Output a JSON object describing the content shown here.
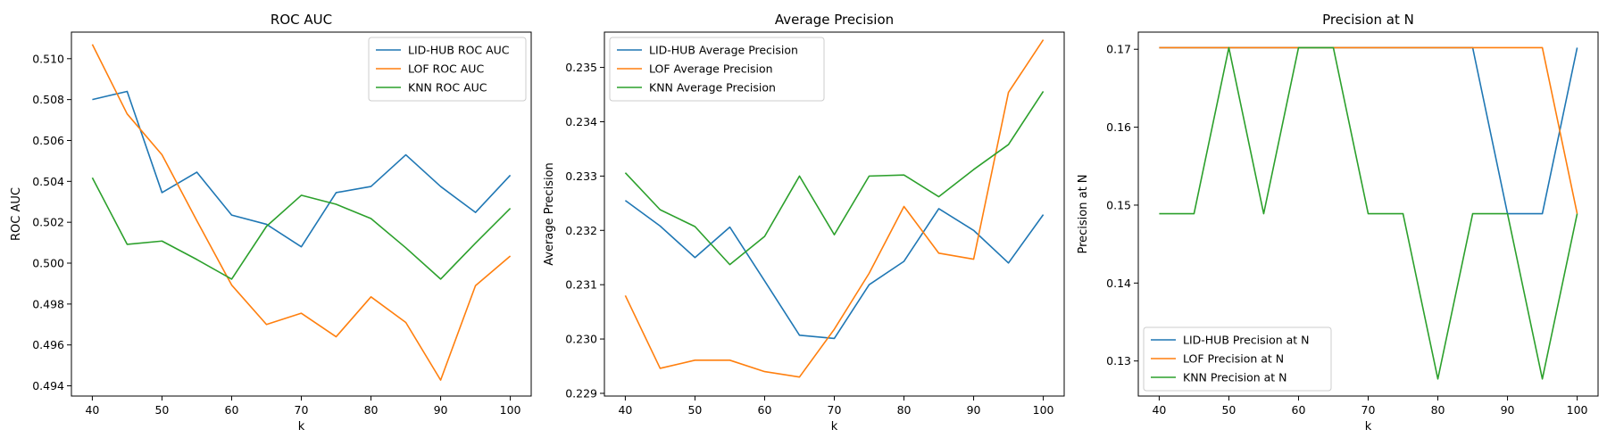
{
  "chart_data": [
    {
      "type": "line",
      "title": "ROC AUC",
      "xlabel": "k",
      "ylabel": "ROC AUC",
      "x": [
        40,
        45,
        50,
        55,
        60,
        65,
        70,
        75,
        80,
        85,
        90,
        95,
        100
      ],
      "xlim": [
        37,
        103
      ],
      "ylim": [
        0.4935,
        0.5113
      ],
      "xticks": [
        40,
        50,
        60,
        70,
        80,
        90,
        100
      ],
      "yticks": [
        0.494,
        0.496,
        0.498,
        0.5,
        0.502,
        0.504,
        0.506,
        0.508,
        0.51
      ],
      "ytick_labels": [
        "0.494",
        "0.496",
        "0.498",
        "0.500",
        "0.502",
        "0.504",
        "0.506",
        "0.508",
        "0.510"
      ],
      "legend_position": "top-right",
      "grid": false,
      "series": [
        {
          "name": "LID-HUB ROC AUC",
          "color": "#1f77b4",
          "values": [
            0.508,
            0.5084,
            0.50345,
            0.50445,
            0.50235,
            0.5019,
            0.5008,
            0.50345,
            0.50375,
            0.5053,
            0.50375,
            0.50248,
            0.5043
          ]
        },
        {
          "name": "LOF ROC AUC",
          "color": "#ff7f0e",
          "values": [
            0.5107,
            0.5073,
            0.5053,
            0.50208,
            0.49893,
            0.497,
            0.49755,
            0.4964,
            0.49835,
            0.4971,
            0.49428,
            0.4989,
            0.50035
          ]
        },
        {
          "name": "KNN ROC AUC",
          "color": "#2ca02c",
          "values": [
            0.50418,
            0.50092,
            0.50108,
            0.50018,
            0.49922,
            0.5018,
            0.50332,
            0.50288,
            0.50218,
            0.50075,
            0.49922,
            0.50098,
            0.50268
          ]
        }
      ]
    },
    {
      "type": "line",
      "title": "Average Precision",
      "xlabel": "k",
      "ylabel": "Average Precision",
      "x": [
        40,
        45,
        50,
        55,
        60,
        65,
        70,
        75,
        80,
        85,
        90,
        95,
        100
      ],
      "xlim": [
        37,
        103
      ],
      "ylim": [
        0.22895,
        0.23565
      ],
      "xticks": [
        40,
        50,
        60,
        70,
        80,
        90,
        100
      ],
      "yticks": [
        0.229,
        0.23,
        0.231,
        0.232,
        0.233,
        0.234,
        0.235
      ],
      "ytick_labels": [
        "0.229",
        "0.230",
        "0.231",
        "0.232",
        "0.233",
        "0.234",
        "0.235"
      ],
      "legend_position": "top-left",
      "grid": false,
      "series": [
        {
          "name": "LID-HUB Average Precision",
          "color": "#1f77b4",
          "values": [
            0.23255,
            0.23208,
            0.2315,
            0.23206,
            0.23107,
            0.23007,
            0.23001,
            0.231,
            0.23143,
            0.2324,
            0.232,
            0.2314,
            0.23229
          ]
        },
        {
          "name": "LOF Average Precision",
          "color": "#ff7f0e",
          "values": [
            0.2308,
            0.22946,
            0.22961,
            0.22961,
            0.2294,
            0.2293,
            0.23018,
            0.23121,
            0.23244,
            0.23158,
            0.23147,
            0.23454,
            0.23551
          ]
        },
        {
          "name": "KNN Average Precision",
          "color": "#2ca02c",
          "values": [
            0.23306,
            0.23238,
            0.23207,
            0.23137,
            0.23189,
            0.233,
            0.23192,
            0.233,
            0.23302,
            0.23262,
            0.23312,
            0.23358,
            0.23456
          ]
        }
      ]
    },
    {
      "type": "line",
      "title": "Precision at N",
      "xlabel": "k",
      "ylabel": "Precision at N",
      "x": [
        40,
        45,
        50,
        55,
        60,
        65,
        70,
        75,
        80,
        85,
        90,
        95,
        100
      ],
      "xlim": [
        37,
        103
      ],
      "ylim": [
        0.1255,
        0.1722
      ],
      "xticks": [
        40,
        50,
        60,
        70,
        80,
        90,
        100
      ],
      "yticks": [
        0.13,
        0.14,
        0.15,
        0.16,
        0.17
      ],
      "ytick_labels": [
        "0.13",
        "0.14",
        "0.15",
        "0.16",
        "0.17"
      ],
      "legend_position": "bottom-left",
      "grid": false,
      "series": [
        {
          "name": "LID-HUB Precision at N",
          "color": "#1f77b4",
          "values": [
            0.1702,
            0.1702,
            0.1702,
            0.1702,
            0.1702,
            0.1702,
            0.1702,
            0.1702,
            0.1702,
            0.1702,
            0.1489,
            0.1489,
            0.1702
          ]
        },
        {
          "name": "LOF Precision at N",
          "color": "#ff7f0e",
          "values": [
            0.1702,
            0.1702,
            0.1702,
            0.1702,
            0.1702,
            0.1702,
            0.1702,
            0.1702,
            0.1702,
            0.1702,
            0.1702,
            0.1702,
            0.1489
          ]
        },
        {
          "name": "KNN Precision at N",
          "color": "#2ca02c",
          "values": [
            0.1489,
            0.1489,
            0.1702,
            0.1489,
            0.1702,
            0.1702,
            0.1489,
            0.1489,
            0.1277,
            0.1489,
            0.1489,
            0.1277,
            0.1489
          ]
        }
      ]
    }
  ]
}
